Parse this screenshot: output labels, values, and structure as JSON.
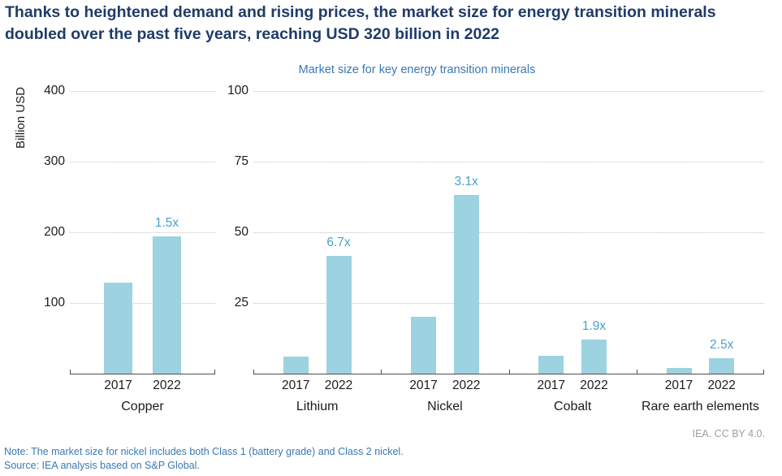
{
  "header": {
    "title": "Thanks to heightened demand and rising prices, the market size for energy transition minerals doubled over the past five years, reaching USD 320 billion in 2022"
  },
  "chart_data": {
    "type": "bar",
    "title": "Market size for key energy transition minerals",
    "ylabel": "Billion USD",
    "grid": true,
    "legend": false,
    "unit": "Billion USD",
    "colors": {
      "bar_fill": "#9dd2e0",
      "multiplier_label": "#4aa0d0",
      "headline_navy": "#1f3b68",
      "subtitle_blue": "#3a78b5"
    },
    "panels": [
      {
        "name": "copper",
        "ylim": [
          0,
          400
        ],
        "yticks": [
          400,
          300,
          200,
          100
        ],
        "groups": [
          {
            "label": "Copper",
            "bars": [
              {
                "year": "2017",
                "value": 130
              },
              {
                "year": "2022",
                "value": 195,
                "multiplier": "1.5x"
              }
            ]
          }
        ]
      },
      {
        "name": "other-minerals",
        "ylim": [
          0,
          100
        ],
        "yticks": [
          100,
          75,
          50,
          25
        ],
        "groups": [
          {
            "label": "Lithium",
            "bars": [
              {
                "year": "2017",
                "value": 6.3
              },
              {
                "year": "2022",
                "value": 42,
                "multiplier": "6.7x"
              }
            ]
          },
          {
            "label": "Nickel",
            "bars": [
              {
                "year": "2017",
                "value": 20.5
              },
              {
                "year": "2022",
                "value": 63.5,
                "multiplier": "3.1x"
              }
            ]
          },
          {
            "label": "Cobalt",
            "bars": [
              {
                "year": "2017",
                "value": 6.5
              },
              {
                "year": "2022",
                "value": 12.4,
                "multiplier": "1.9x"
              }
            ]
          },
          {
            "label": "Rare earth elements",
            "bars": [
              {
                "year": "2017",
                "value": 2.3
              },
              {
                "year": "2022",
                "value": 5.7,
                "multiplier": "2.5x"
              }
            ]
          }
        ]
      }
    ]
  },
  "footer": {
    "license": "IEA. CC BY 4.0.",
    "note": "Note: The market size for nickel includes both Class 1 (battery grade) and Class 2 nickel.",
    "source": "Source: IEA analysis based on S&P Global."
  }
}
